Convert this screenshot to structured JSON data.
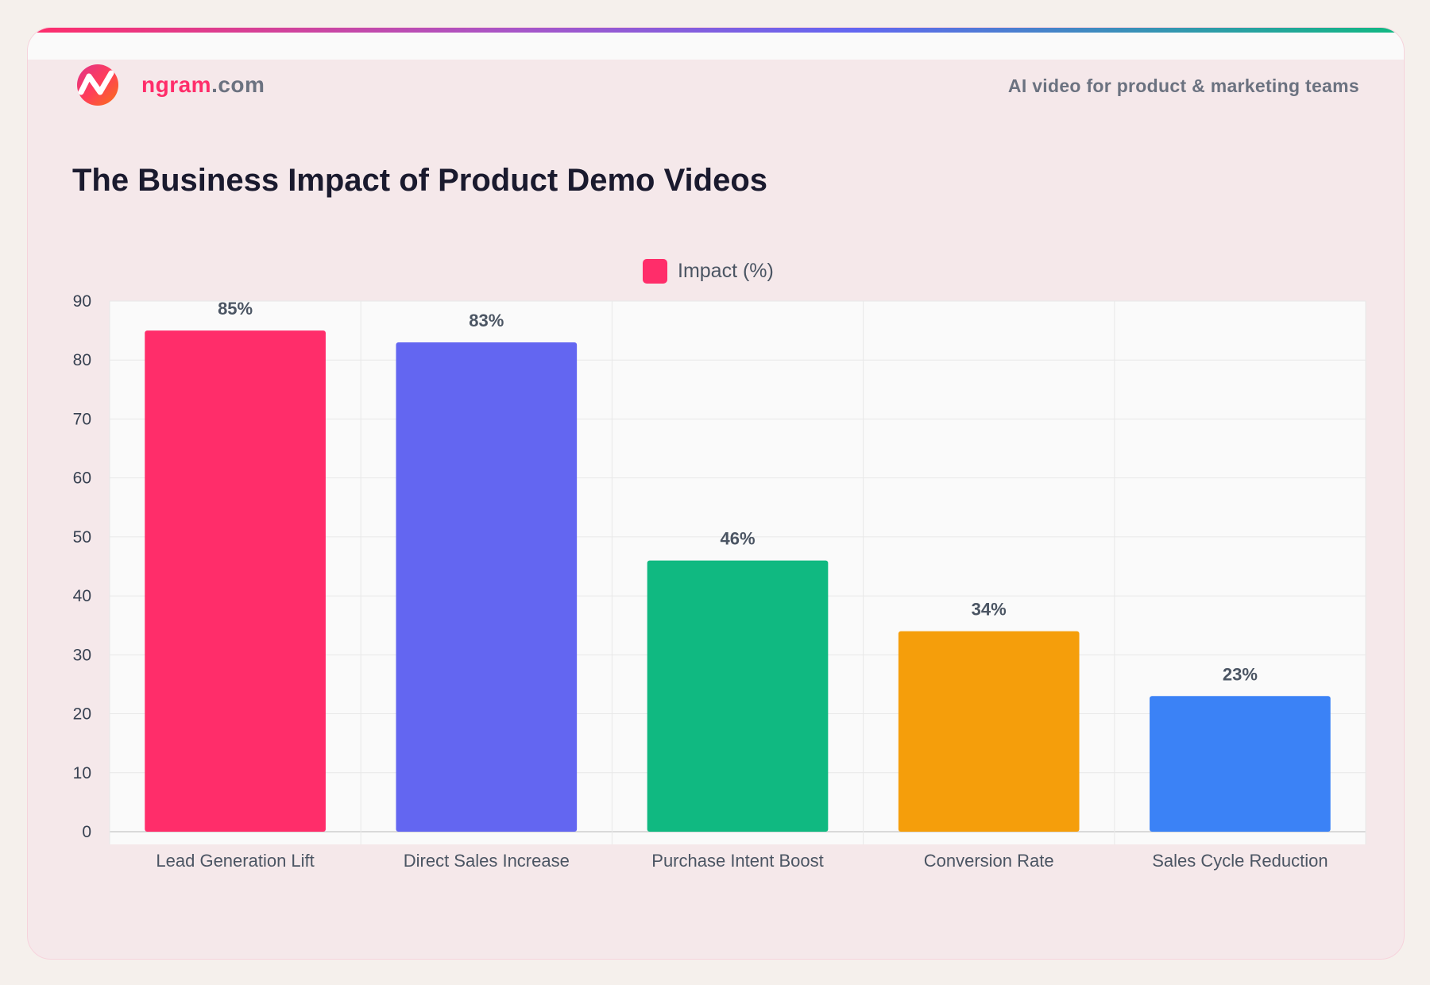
{
  "header": {
    "brand_name": "ngram",
    "brand_suffix": ".com",
    "tagline": "AI video for product & marketing teams",
    "title": "The Business Impact of Product Demo Videos"
  },
  "colors": {
    "accent": "#ff2d6a",
    "text": "#1a1a2e",
    "muted": "#6b7280"
  },
  "chart_data": {
    "type": "bar",
    "title": "The Business Impact of Product Demo Videos",
    "categories": [
      "Lead Generation Lift",
      "Direct Sales Increase",
      "Purchase Intent Boost",
      "Conversion Rate",
      "Sales Cycle Reduction"
    ],
    "series": [
      {
        "name": "Impact (%)",
        "values": [
          85,
          83,
          46,
          34,
          23
        ]
      }
    ],
    "data_labels": [
      "85%",
      "83%",
      "46%",
      "34%",
      "23%"
    ],
    "bar_colors": [
      "#ff2d6a",
      "#6366f1",
      "#10b981",
      "#f59e0b",
      "#3b82f6"
    ],
    "legend_color": "#ff2d6a",
    "ylim": [
      0,
      90
    ],
    "yticks": [
      0,
      10,
      20,
      30,
      40,
      50,
      60,
      70,
      80,
      90
    ],
    "grid": true,
    "legend_position": "top-center",
    "xlabel": "",
    "ylabel": ""
  }
}
